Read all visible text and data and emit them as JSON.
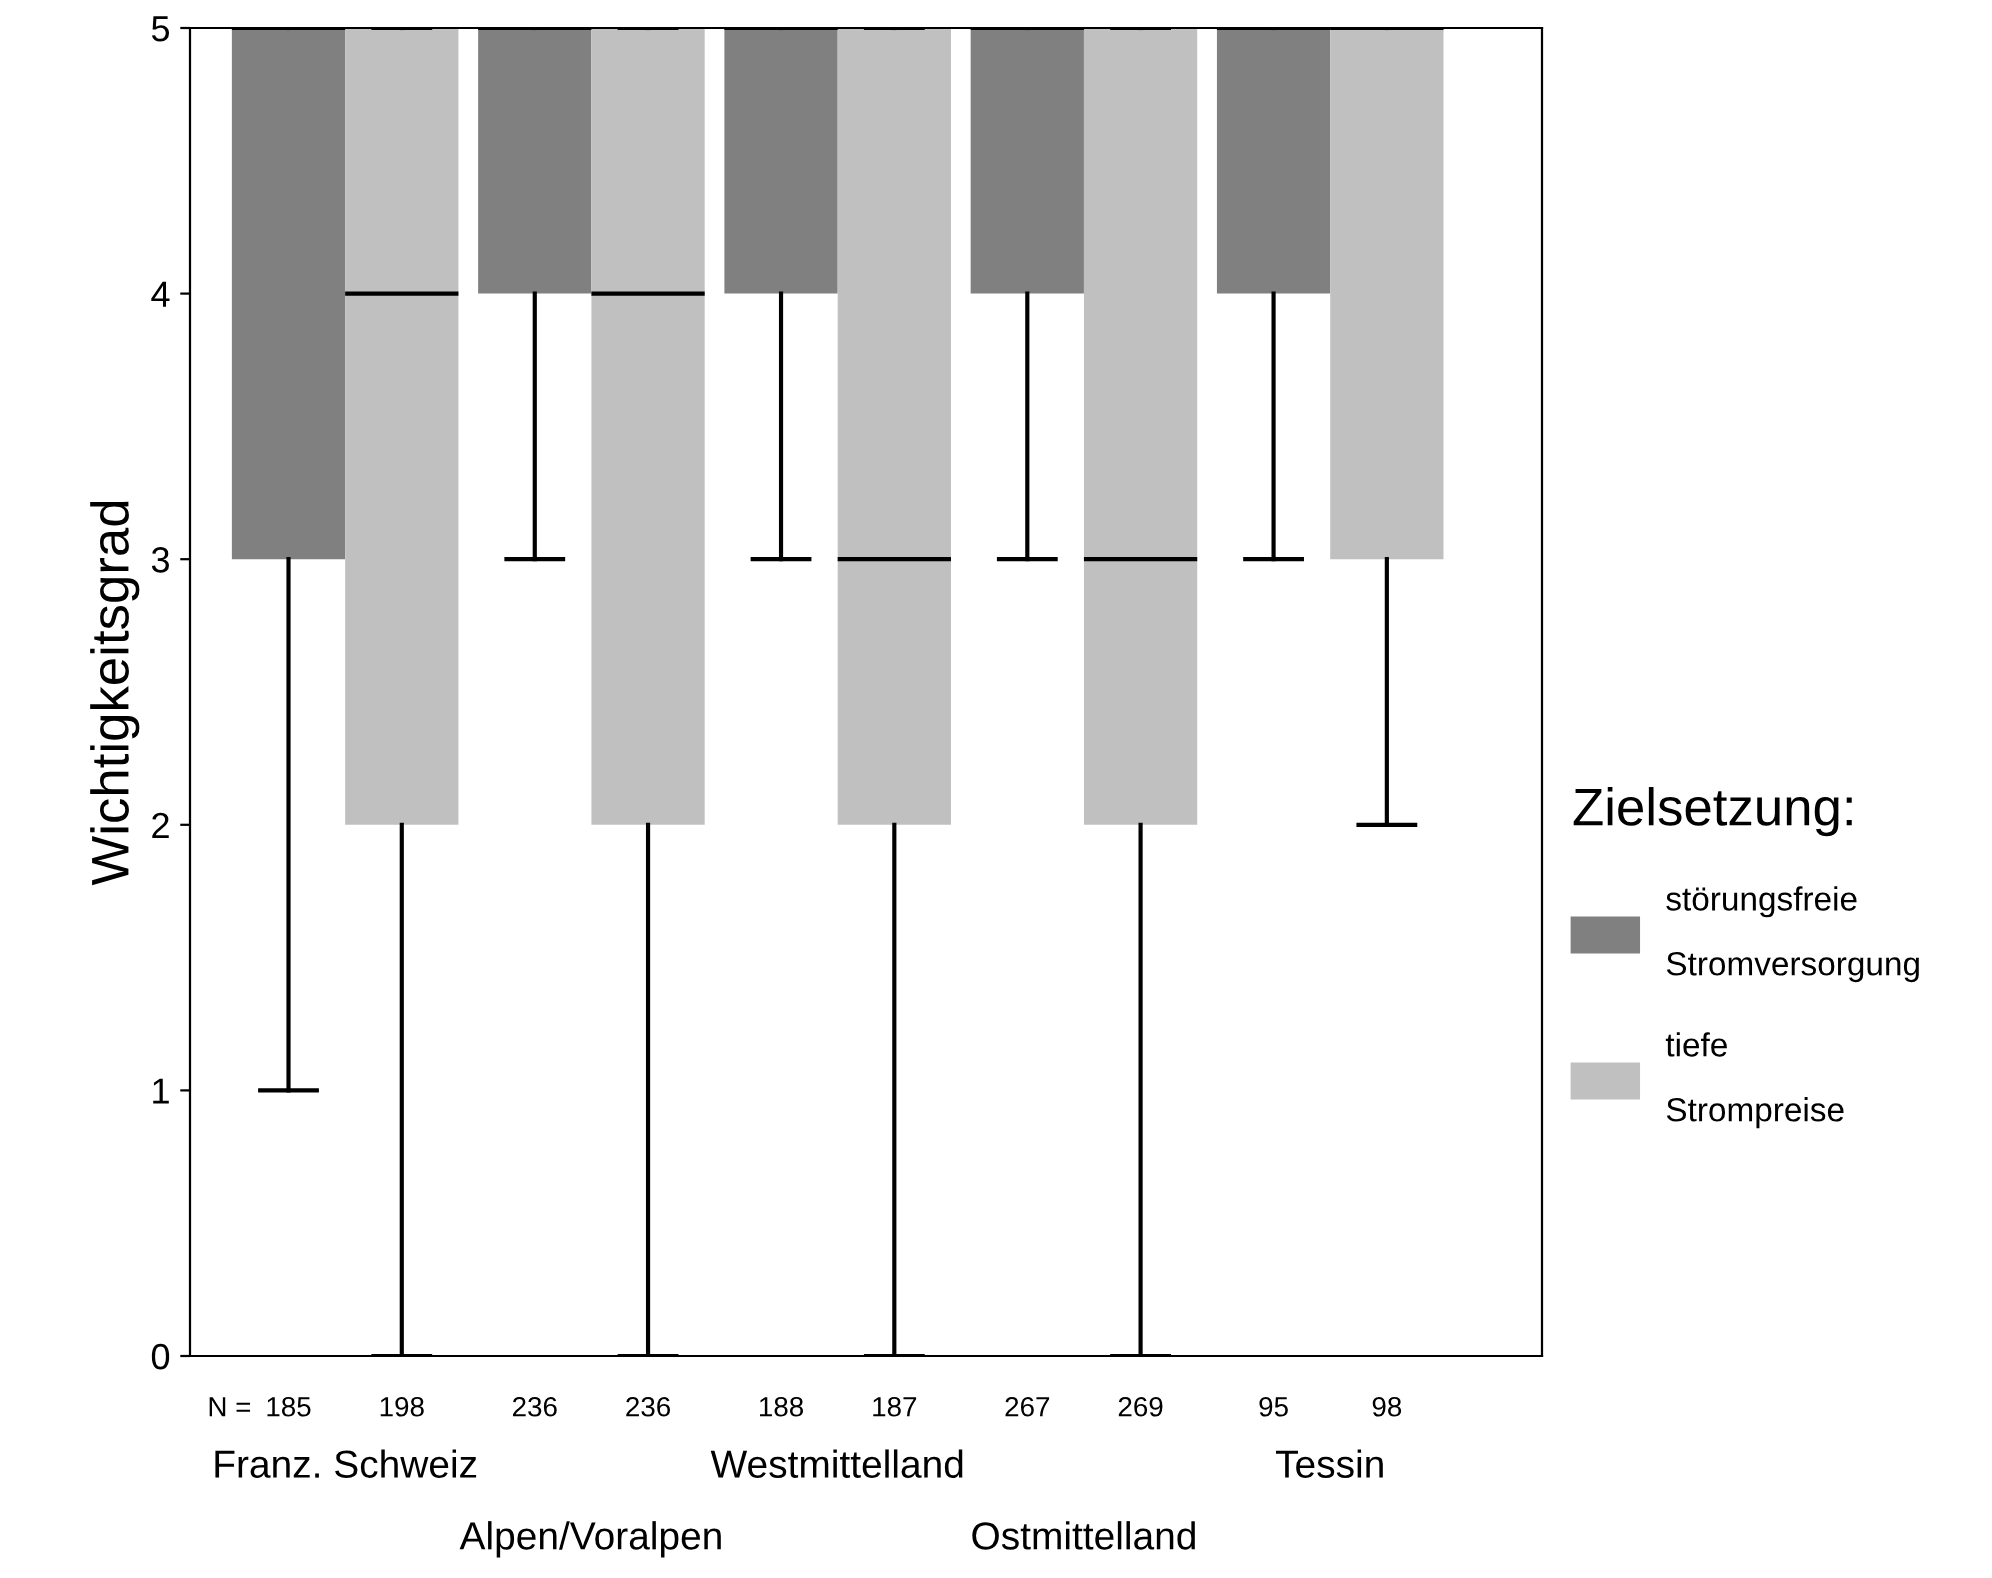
{
  "chart_data": {
    "type": "box",
    "ylabel": "Wichtigkeitsgrad",
    "legend_title": "Zielsetzung:",
    "legend": "right",
    "grid": false,
    "categories": [
      "Franz. Schweiz",
      "Alpen/Voralpen",
      "Westmittelland",
      "Ostmittelland",
      "Tessin"
    ],
    "ylim": [
      0,
      5
    ],
    "yticks": [
      0,
      1,
      2,
      3,
      4,
      5
    ],
    "series": [
      {
        "name": "störungsfreie\nStromversorgung",
        "color": "#808080",
        "boxes": [
          {
            "low": 1,
            "q1": 3,
            "median": 5,
            "q3": 5,
            "high": 5
          },
          {
            "low": 3,
            "q1": 4,
            "median": 5,
            "q3": 5,
            "high": 5
          },
          {
            "low": 3,
            "q1": 4,
            "median": 5,
            "q3": 5,
            "high": 5
          },
          {
            "low": 3,
            "q1": 4,
            "median": 5,
            "q3": 5,
            "high": 5
          },
          {
            "low": 3,
            "q1": 4,
            "median": 5,
            "q3": 5,
            "high": 5
          }
        ]
      },
      {
        "name": "tiefe\nStrompreise",
        "color": "#c0c0c0",
        "boxes": [
          {
            "low": 0,
            "q1": 2,
            "median": 4,
            "q3": 5,
            "high": 5
          },
          {
            "low": 0,
            "q1": 2,
            "median": 4,
            "q3": 5,
            "high": 5
          },
          {
            "low": 0,
            "q1": 2,
            "median": 3,
            "q3": 5,
            "high": 5
          },
          {
            "low": 0,
            "q1": 2,
            "median": 3,
            "q3": 5,
            "high": 5
          },
          {
            "low": 2,
            "q1": 3,
            "median": 5,
            "q3": 5,
            "high": 5
          }
        ]
      }
    ],
    "annotations": [
      "N =",
      "185",
      "198",
      "236",
      "236",
      "188",
      "187",
      "267",
      "269",
      "95",
      "98"
    ]
  }
}
